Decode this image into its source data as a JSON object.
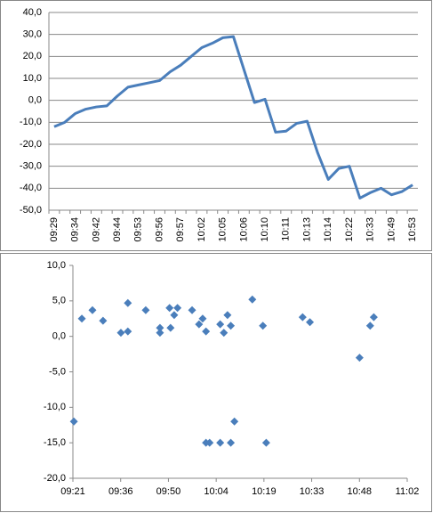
{
  "chart_data": [
    {
      "type": "line",
      "categories": [
        "09:29",
        null,
        "09:34",
        null,
        "09:42",
        null,
        "09:44",
        null,
        "09:53",
        null,
        "09:56",
        null,
        "09:57",
        null,
        "10:02",
        null,
        "10:05",
        null,
        "10:06",
        null,
        "10:10",
        null,
        "10:11",
        null,
        "10:13",
        null,
        "10:14",
        null,
        "10:22",
        null,
        "10:33",
        null,
        "10:49",
        null,
        "10:53"
      ],
      "values": [
        -12,
        -10,
        -6,
        -4,
        -3,
        -2.5,
        2,
        6,
        7,
        8,
        9,
        13,
        16,
        20,
        24,
        26,
        28.5,
        29,
        14,
        -1,
        0.5,
        -14.5,
        -14,
        -10.5,
        -9.5,
        -24,
        -36,
        -31,
        -30,
        -44.5,
        -42,
        -40,
        -43,
        -41.5,
        -38.5
      ],
      "color": "#4a7ebb",
      "ylim": [
        -50,
        40
      ],
      "yticks": [
        {
          "value": -50,
          "label": "-50,0"
        },
        {
          "value": -40,
          "label": "-40,0"
        },
        {
          "value": -30,
          "label": "-30,0"
        },
        {
          "value": -20,
          "label": "-20,0"
        },
        {
          "value": -10,
          "label": "-10,0"
        },
        {
          "value": 0,
          "label": "0,0"
        },
        {
          "value": 10,
          "label": "10,0"
        },
        {
          "value": 20,
          "label": "20,0"
        },
        {
          "value": 30,
          "label": "30,0"
        },
        {
          "value": 40,
          "label": "40,0"
        }
      ],
      "negative_tick_color": "#ff0000",
      "grid": true
    },
    {
      "type": "scatter",
      "x": [
        561.3,
        563.7,
        566.9,
        570.1,
        575.5,
        577.6,
        577.6,
        583.0,
        587.3,
        587.3,
        590.2,
        590.5,
        591.6,
        592.6,
        597.0,
        599.1,
        600.2,
        601.2,
        601.2,
        602.3,
        605.5,
        605.5,
        606.6,
        607.7,
        608.7,
        608.7,
        609.8,
        615.2,
        618.4,
        619.4,
        630.4,
        632.6,
        647.6,
        650.8,
        651.9
      ],
      "values": [
        -12,
        2.5,
        3.7,
        2.2,
        0.5,
        4.7,
        0.7,
        3.7,
        1.2,
        0.5,
        4.0,
        1.2,
        3.0,
        4.0,
        3.7,
        1.7,
        2.5,
        0.7,
        -15,
        -15,
        -15,
        1.7,
        0.5,
        3.0,
        1.5,
        -15,
        -12,
        5.2,
        1.5,
        -15,
        2.7,
        2.0,
        -3.0,
        1.5,
        2.7
      ],
      "color": "#4a7ebb",
      "xlim": [
        561,
        662
      ],
      "xticks": [
        {
          "value": 561,
          "label": "09:21"
        },
        {
          "value": 575.43,
          "label": "09:36"
        },
        {
          "value": 589.86,
          "label": "09:50"
        },
        {
          "value": 604.29,
          "label": "10:04"
        },
        {
          "value": 618.71,
          "label": "10:19"
        },
        {
          "value": 633.14,
          "label": "10:33"
        },
        {
          "value": 647.57,
          "label": "10:48"
        },
        {
          "value": 662,
          "label": "11:02"
        }
      ],
      "ylim": [
        -20,
        10
      ],
      "yticks": [
        {
          "value": -20,
          "label": "-20,0"
        },
        {
          "value": -15,
          "label": "-15,0"
        },
        {
          "value": -10,
          "label": "-10,0"
        },
        {
          "value": -5,
          "label": "-5,0"
        },
        {
          "value": 0,
          "label": "0,0"
        },
        {
          "value": 5,
          "label": "5,0"
        },
        {
          "value": 10,
          "label": "10,0"
        }
      ],
      "grid": false
    }
  ]
}
